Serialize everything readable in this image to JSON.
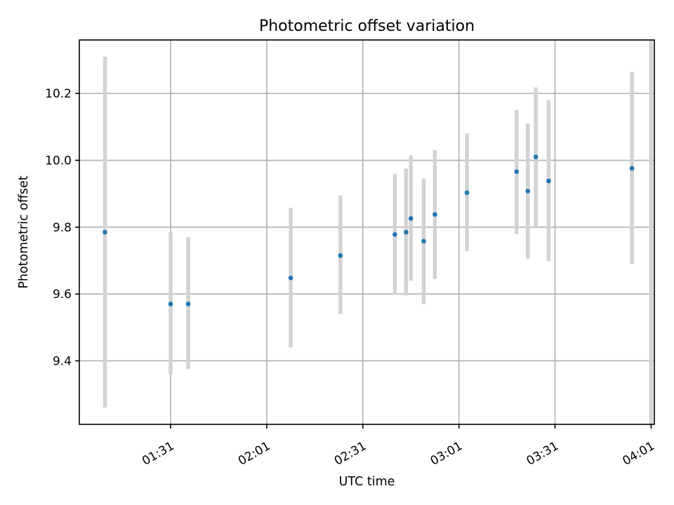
{
  "chart_data": {
    "type": "scatter",
    "title": "Photometric offset variation",
    "xlabel": "UTC time",
    "ylabel": "Photometric offset",
    "x_tick_labels": [
      "01:31",
      "02:01",
      "02:31",
      "03:01",
      "03:31",
      "04:01"
    ],
    "y_tick_labels": [
      "9.4",
      "9.6",
      "9.8",
      "10.0",
      "10.2"
    ],
    "y_ticks": [
      9.4,
      9.6,
      9.8,
      10.0,
      10.2
    ],
    "xlim": [
      "01:02:30",
      "04:02:00"
    ],
    "ylim": [
      9.21,
      10.36
    ],
    "grid": true,
    "colors": {
      "points": "#1f77b4",
      "error_bars": "#d3d3d3",
      "grid": "#b0b0b0"
    },
    "series": [
      {
        "points": [
          {
            "x": "01:10:30",
            "y": 9.785,
            "ylow": 9.26,
            "yhigh": 10.31
          },
          {
            "x": "01:31:00",
            "y": 9.57,
            "ylow": 9.36,
            "yhigh": 9.785
          },
          {
            "x": "01:36:30",
            "y": 9.57,
            "ylow": 9.375,
            "yhigh": 9.77
          },
          {
            "x": "02:08:30",
            "y": 9.648,
            "ylow": 9.44,
            "yhigh": 9.858
          },
          {
            "x": "02:24:00",
            "y": 9.715,
            "ylow": 9.54,
            "yhigh": 9.895
          },
          {
            "x": "02:41:00",
            "y": 9.778,
            "ylow": 9.598,
            "yhigh": 9.96
          },
          {
            "x": "02:44:30",
            "y": 9.785,
            "ylow": 9.595,
            "yhigh": 9.975
          },
          {
            "x": "02:46:00",
            "y": 9.826,
            "ylow": 9.64,
            "yhigh": 10.015
          },
          {
            "x": "02:50:00",
            "y": 9.758,
            "ylow": 9.57,
            "yhigh": 9.945
          },
          {
            "x": "02:53:30",
            "y": 9.838,
            "ylow": 9.645,
            "yhigh": 10.03
          },
          {
            "x": "03:03:30",
            "y": 9.903,
            "ylow": 9.728,
            "yhigh": 10.08
          },
          {
            "x": "03:19:00",
            "y": 9.966,
            "ylow": 9.78,
            "yhigh": 10.15
          },
          {
            "x": "03:22:30",
            "y": 9.908,
            "ylow": 9.705,
            "yhigh": 10.11
          },
          {
            "x": "03:25:00",
            "y": 10.01,
            "ylow": 9.8,
            "yhigh": 10.218
          },
          {
            "x": "03:29:00",
            "y": 9.938,
            "ylow": 9.698,
            "yhigh": 10.18
          },
          {
            "x": "03:55:00",
            "y": 9.976,
            "ylow": 9.69,
            "yhigh": 10.265
          },
          {
            "x": "04:01:00",
            "y": null,
            "ylow": 9.21,
            "yhigh": 10.36
          }
        ]
      }
    ]
  }
}
